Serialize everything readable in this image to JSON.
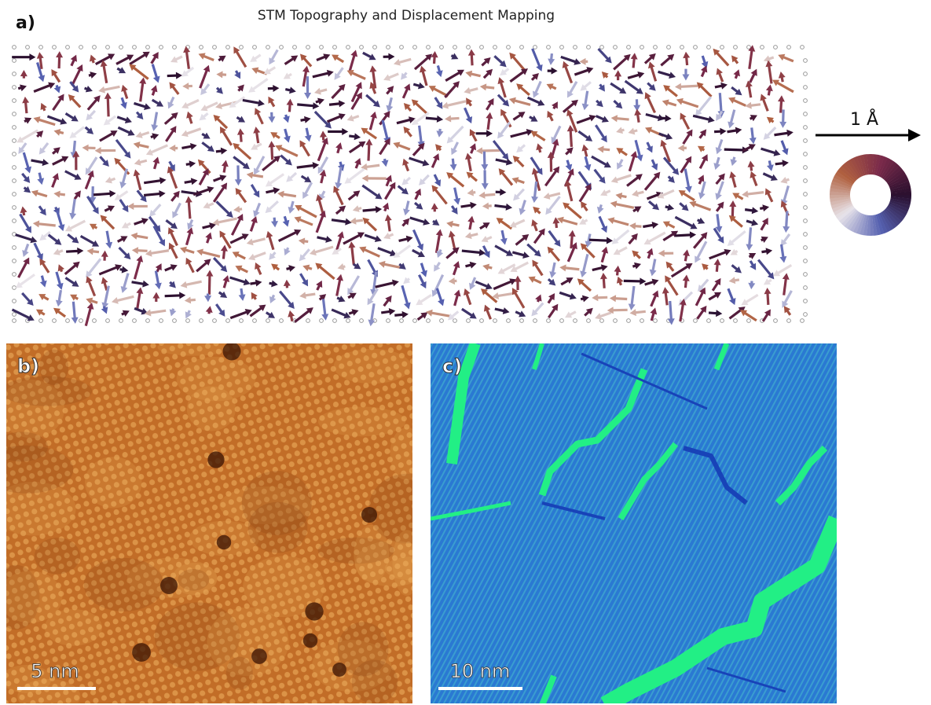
{
  "panels": [
    {
      "label": "a)",
      "title": "STM Topography and Displacement Mapping",
      "scale_label": "1 Å"
    },
    {
      "label": "b)",
      "scale_label": "5 nm"
    },
    {
      "label": "c)",
      "scale_label": "10 nm"
    }
  ]
}
